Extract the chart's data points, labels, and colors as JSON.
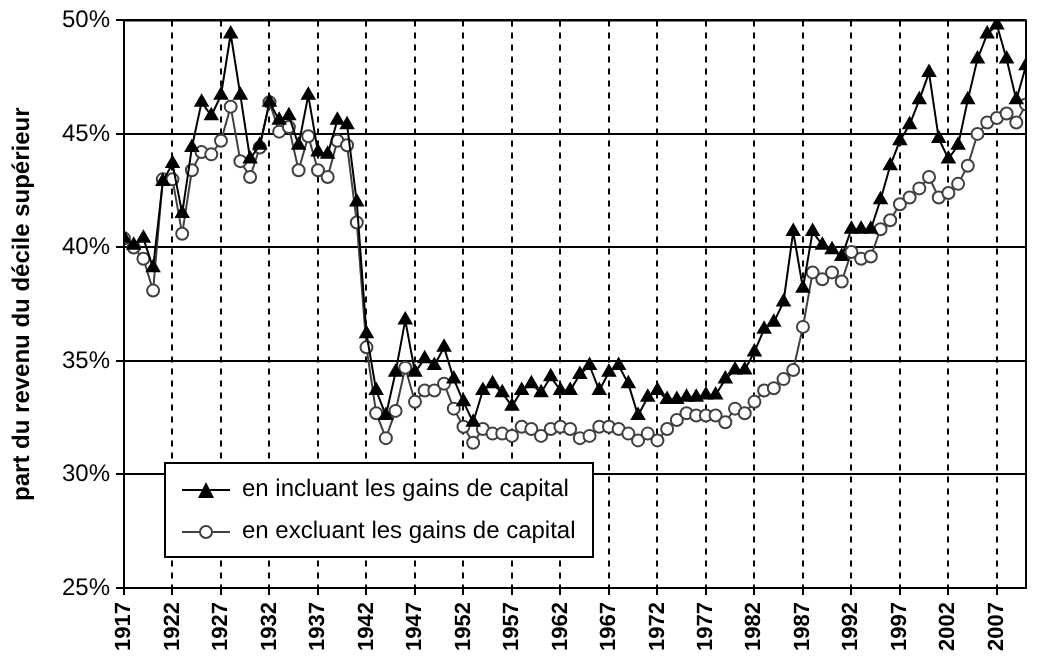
{
  "chart_data": {
    "type": "line",
    "ylabel": "part du revenu du décile supérieur",
    "x": [
      1917,
      1918,
      1919,
      1920,
      1921,
      1922,
      1923,
      1924,
      1925,
      1926,
      1927,
      1928,
      1929,
      1930,
      1931,
      1932,
      1933,
      1934,
      1935,
      1936,
      1937,
      1938,
      1939,
      1940,
      1941,
      1942,
      1943,
      1944,
      1945,
      1946,
      1947,
      1948,
      1949,
      1950,
      1951,
      1952,
      1953,
      1954,
      1955,
      1956,
      1957,
      1958,
      1959,
      1960,
      1961,
      1962,
      1963,
      1964,
      1965,
      1966,
      1967,
      1968,
      1969,
      1970,
      1971,
      1972,
      1973,
      1974,
      1975,
      1976,
      1977,
      1978,
      1979,
      1980,
      1981,
      1982,
      1983,
      1984,
      1985,
      1986,
      1987,
      1988,
      1989,
      1990,
      1991,
      1992,
      1993,
      1994,
      1995,
      1996,
      1997,
      1998,
      1999,
      2000,
      2001,
      2002,
      2003,
      2004,
      2005,
      2006,
      2007,
      2008,
      2009,
      2010
    ],
    "series": [
      {
        "name": "en incluant les gains de capital",
        "color": "#000000",
        "marker": "triangle",
        "values": [
          40.4,
          40.1,
          40.4,
          39.1,
          42.9,
          43.7,
          41.5,
          44.4,
          46.4,
          45.8,
          46.7,
          49.4,
          46.7,
          43.9,
          44.5,
          46.4,
          45.6,
          45.8,
          44.5,
          46.7,
          44.2,
          44.1,
          45.6,
          45.4,
          42.0,
          36.2,
          33.7,
          32.6,
          34.5,
          36.8,
          34.5,
          35.1,
          34.8,
          35.6,
          34.2,
          33.2,
          32.3,
          33.7,
          34.0,
          33.6,
          33.0,
          33.7,
          34.0,
          33.6,
          34.3,
          33.7,
          33.7,
          34.4,
          34.8,
          33.7,
          34.5,
          34.8,
          34.0,
          32.6,
          33.4,
          33.7,
          33.3,
          33.3,
          33.4,
          33.4,
          33.5,
          33.5,
          34.2,
          34.6,
          34.6,
          35.4,
          36.4,
          36.7,
          37.6,
          40.7,
          38.2,
          40.7,
          40.1,
          39.9,
          39.6,
          40.8,
          40.8,
          40.8,
          42.1,
          43.6,
          44.7,
          45.4,
          46.5,
          47.7,
          44.8,
          43.9,
          44.5,
          46.5,
          48.3,
          49.4,
          49.8,
          48.3,
          46.5,
          48.0
        ]
      },
      {
        "name": "en excluant les gains de capital",
        "color": "#404040",
        "marker": "circle",
        "values": [
          40.4,
          40.0,
          39.5,
          38.1,
          43.0,
          43.0,
          40.6,
          43.4,
          44.2,
          44.1,
          44.7,
          46.2,
          43.8,
          43.1,
          44.4,
          46.4,
          45.1,
          45.3,
          43.4,
          44.9,
          43.4,
          43.1,
          44.7,
          44.5,
          41.1,
          35.6,
          32.7,
          31.6,
          32.8,
          34.7,
          33.2,
          33.7,
          33.7,
          34.0,
          32.9,
          32.1,
          31.4,
          32.0,
          31.8,
          31.8,
          31.7,
          32.1,
          32.0,
          31.7,
          32.0,
          32.1,
          32.0,
          31.6,
          31.7,
          32.1,
          32.1,
          32.0,
          31.8,
          31.5,
          31.8,
          31.5,
          32.0,
          32.4,
          32.7,
          32.6,
          32.6,
          32.6,
          32.3,
          32.9,
          32.7,
          33.2,
          33.7,
          33.8,
          34.2,
          34.6,
          36.5,
          38.9,
          38.6,
          38.9,
          38.5,
          39.8,
          39.5,
          39.6,
          40.8,
          41.2,
          41.9,
          42.2,
          42.6,
          43.1,
          42.2,
          42.4,
          42.8,
          43.6,
          45.0,
          45.5,
          45.7,
          45.9,
          45.5,
          46.3
        ]
      }
    ],
    "xlim": [
      1917,
      2010
    ],
    "xticks": [
      1917,
      1922,
      1927,
      1932,
      1937,
      1942,
      1947,
      1952,
      1957,
      1962,
      1967,
      1972,
      1977,
      1982,
      1987,
      1992,
      1997,
      2002,
      2007
    ],
    "ylim": [
      25,
      50
    ],
    "yticks": [
      {
        "value": 25,
        "label": "25%"
      },
      {
        "value": 30,
        "label": "30%"
      },
      {
        "value": 35,
        "label": "35%"
      },
      {
        "value": 40,
        "label": "40%"
      },
      {
        "value": 45,
        "label": "45%"
      },
      {
        "value": 50,
        "label": "50%"
      }
    ],
    "grid": true,
    "legend": "bottom left",
    "line_style": "solid"
  }
}
